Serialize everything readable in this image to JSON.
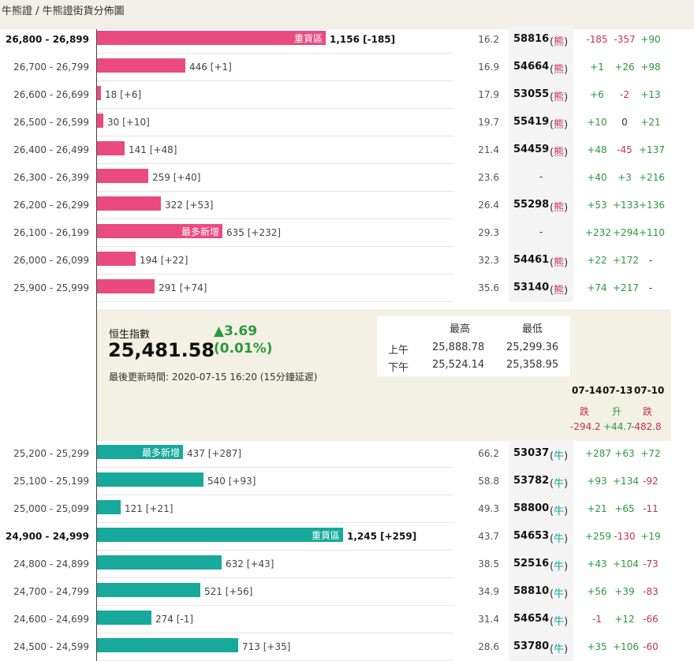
{
  "breadcrumb": "牛熊證 / 牛熊證街貨分佈圖",
  "bear_rows": [
    {
      "range": "26,800 - 26,899",
      "bold": true,
      "amount": "1,156 [-185]",
      "tag": "重貨區",
      "value": 1156,
      "pct": "16.2",
      "code": "58816",
      "type": "熊",
      "c1": "-185",
      "c2": "-357",
      "c3": "+90"
    },
    {
      "range": "26,700 - 26,799",
      "bold": false,
      "amount": "446 [+1]",
      "tag": "",
      "value": 446,
      "pct": "16.9",
      "code": "54664",
      "type": "熊",
      "c1": "+1",
      "c2": "+26",
      "c3": "+98"
    },
    {
      "range": "26,600 - 26,699",
      "bold": false,
      "amount": "18 [+6]",
      "tag": "",
      "value": 18,
      "pct": "17.9",
      "code": "53055",
      "type": "熊",
      "c1": "+6",
      "c2": "-2",
      "c3": "+13"
    },
    {
      "range": "26,500 - 26,599",
      "bold": false,
      "amount": "30 [+10]",
      "tag": "",
      "value": 30,
      "pct": "19.7",
      "code": "55419",
      "type": "熊",
      "c1": "+10",
      "c2": "0",
      "c3": "+21"
    },
    {
      "range": "26,400 - 26,499",
      "bold": false,
      "amount": "141 [+48]",
      "tag": "",
      "value": 141,
      "pct": "21.4",
      "code": "54459",
      "type": "熊",
      "c1": "+48",
      "c2": "-45",
      "c3": "+137"
    },
    {
      "range": "26,300 - 26,399",
      "bold": false,
      "amount": "259 [+40]",
      "tag": "",
      "value": 259,
      "pct": "23.6",
      "code": "-",
      "type": "",
      "c1": "+40",
      "c2": "+3",
      "c3": "+216"
    },
    {
      "range": "26,200 - 26,299",
      "bold": false,
      "amount": "322 [+53]",
      "tag": "",
      "value": 322,
      "pct": "26.4",
      "code": "55298",
      "type": "熊",
      "c1": "+53",
      "c2": "+133",
      "c3": "+136"
    },
    {
      "range": "26,100 - 26,199",
      "bold": false,
      "amount": "635 [+232]",
      "tag": "最多新增",
      "value": 635,
      "pct": "29.3",
      "code": "-",
      "type": "",
      "c1": "+232",
      "c2": "+294",
      "c3": "+110"
    },
    {
      "range": "26,000 - 26,099",
      "bold": false,
      "amount": "194 [+22]",
      "tag": "",
      "value": 194,
      "pct": "32.3",
      "code": "54461",
      "type": "熊",
      "c1": "+22",
      "c2": "+172",
      "c3": "-"
    },
    {
      "range": "25,900 - 25,999",
      "bold": false,
      "amount": "291 [+74]",
      "tag": "",
      "value": 291,
      "pct": "35.6",
      "code": "53140",
      "type": "熊",
      "c1": "+74",
      "c2": "+217",
      "c3": "-"
    }
  ],
  "index": {
    "name": "恒生指數",
    "value": "25,481.58",
    "change": "▲3.69",
    "change_pct": "(0.01%)",
    "updated": "最後更新時間: 2020-07-15 16:20 (15分鐘延遲)",
    "hl_header_high": "最高",
    "hl_header_low": "最低",
    "am_label": "上午",
    "am_high": "25,888.78",
    "am_low": "25,299.36",
    "pm_label": "下午",
    "pm_high": "25,524.14",
    "pm_low": "25,358.95"
  },
  "dates": [
    {
      "date": "07-14",
      "dir": "跌",
      "change": "-294.2",
      "color": "#c8305a"
    },
    {
      "date": "07-13",
      "dir": "升",
      "change": "+44.7",
      "color": "#2a9a3a"
    },
    {
      "date": "07-10",
      "dir": "跌",
      "change": "-482.8",
      "color": "#c8305a"
    }
  ],
  "bull_rows": [
    {
      "range": "25,200 - 25,299",
      "bold": false,
      "amount": "437 [+287]",
      "tag": "最多新增",
      "value": 437,
      "pct": "66.2",
      "code": "53037",
      "type": "牛",
      "c1": "+287",
      "c2": "+63",
      "c3": "+72"
    },
    {
      "range": "25,100 - 25,199",
      "bold": false,
      "amount": "540 [+93]",
      "tag": "",
      "value": 540,
      "pct": "58.8",
      "code": "53782",
      "type": "牛",
      "c1": "+93",
      "c2": "+134",
      "c3": "-92"
    },
    {
      "range": "25,000 - 25,099",
      "bold": false,
      "amount": "121 [+21]",
      "tag": "",
      "value": 121,
      "pct": "49.3",
      "code": "58800",
      "type": "牛",
      "c1": "+21",
      "c2": "+65",
      "c3": "-11"
    },
    {
      "range": "24,900 - 24,999",
      "bold": true,
      "amount": "1,245 [+259]",
      "tag": "重貨區",
      "value": 1245,
      "pct": "43.7",
      "code": "54653",
      "type": "牛",
      "c1": "+259",
      "c2": "-130",
      "c3": "+19"
    },
    {
      "range": "24,800 - 24,899",
      "bold": false,
      "amount": "632 [+43]",
      "tag": "",
      "value": 632,
      "pct": "38.5",
      "code": "52516",
      "type": "牛",
      "c1": "+43",
      "c2": "+104",
      "c3": "-73"
    },
    {
      "range": "24,700 - 24,799",
      "bold": false,
      "amount": "521 [+56]",
      "tag": "",
      "value": 521,
      "pct": "34.9",
      "code": "58810",
      "type": "牛",
      "c1": "+56",
      "c2": "+39",
      "c3": "-83"
    },
    {
      "range": "24,600 - 24,699",
      "bold": false,
      "amount": "274 [-1]",
      "tag": "",
      "value": 274,
      "pct": "31.4",
      "code": "54654",
      "type": "牛",
      "c1": "-1",
      "c2": "+12",
      "c3": "-66"
    },
    {
      "range": "24,500 - 24,599",
      "bold": false,
      "amount": "713 [+35]",
      "tag": "",
      "value": 713,
      "pct": "28.6",
      "code": "53780",
      "type": "牛",
      "c1": "+35",
      "c2": "+106",
      "c3": "-60"
    }
  ]
}
